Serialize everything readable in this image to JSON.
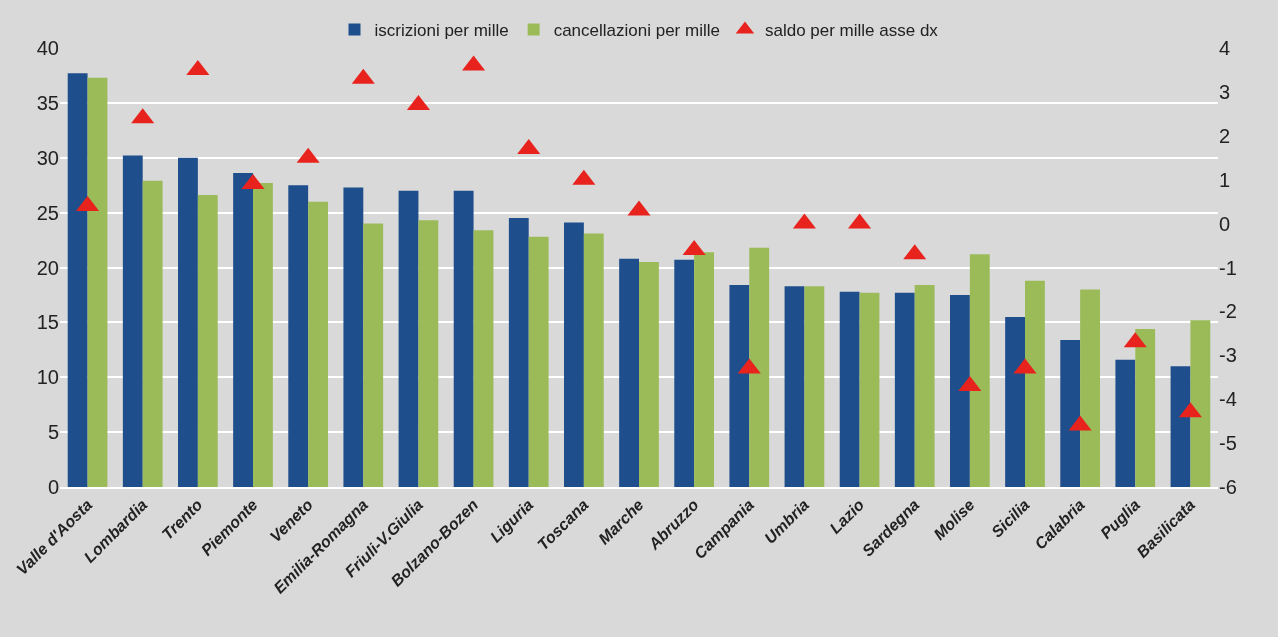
{
  "chart_data": {
    "type": "bar",
    "categories": [
      "Valle d'Aosta",
      "Lombardia",
      "Trento",
      "Piemonte",
      "Veneto",
      "Emilia-Romagna",
      "Friuli-V.Giulia",
      "Bolzano-Bozen",
      "Liguria",
      "Toscana",
      "Marche",
      "Abruzzo",
      "Campania",
      "Umbria",
      "Lazio",
      "Sardegna",
      "Molise",
      "Sicilia",
      "Calabria",
      "Puglia",
      "Basilicata"
    ],
    "series": [
      {
        "name": "iscrizioni per mille",
        "color": "#1f4e8c",
        "values": [
          37.7,
          30.2,
          30.0,
          28.6,
          27.5,
          27.3,
          27.0,
          27.0,
          24.5,
          24.1,
          20.8,
          20.7,
          18.4,
          18.3,
          17.8,
          17.7,
          17.5,
          15.5,
          13.4,
          11.6,
          11.0
        ]
      },
      {
        "name": "cancellazioni per mille",
        "color": "#9bbb59",
        "values": [
          37.3,
          27.9,
          26.6,
          27.7,
          26.0,
          24.0,
          24.3,
          23.4,
          22.8,
          23.1,
          20.5,
          21.4,
          21.8,
          18.3,
          17.7,
          18.4,
          21.2,
          18.8,
          18.0,
          14.4,
          15.2
        ]
      },
      {
        "name": "saldo per mille asse dx",
        "color": "#e8231d",
        "type": "scatter",
        "axis": "y2",
        "marker": "triangle",
        "values": [
          0.4,
          2.4,
          3.5,
          0.9,
          1.5,
          3.3,
          2.7,
          3.6,
          1.7,
          1.0,
          0.3,
          -0.6,
          -3.3,
          0.0,
          0.0,
          -0.7,
          -3.7,
          -3.3,
          -4.6,
          -2.7,
          -4.3
        ]
      }
    ],
    "ylim": [
      0,
      40
    ],
    "yticks": [
      0,
      5,
      10,
      15,
      20,
      25,
      30,
      35,
      40
    ],
    "y2lim": [
      -6,
      4
    ],
    "y2ticks": [
      -6,
      -5,
      -4,
      -3,
      -2,
      -1,
      0,
      1,
      2,
      3,
      4
    ],
    "grid": "y",
    "legend": "top"
  }
}
